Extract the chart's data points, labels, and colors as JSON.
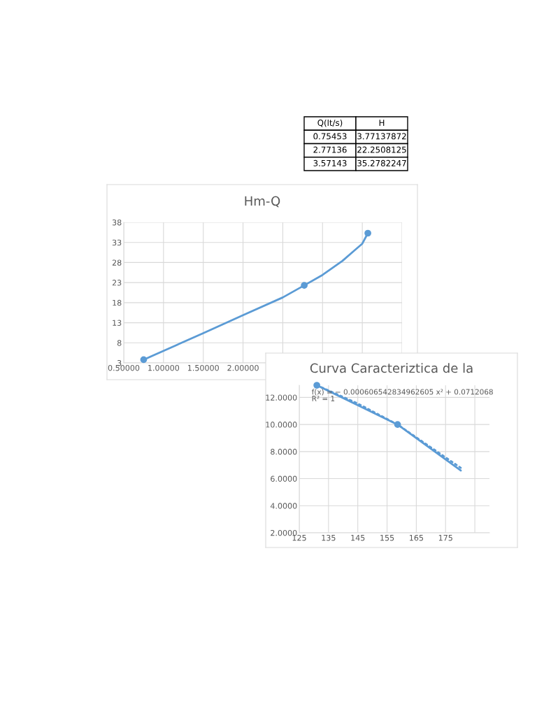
{
  "chart_data": [
    {
      "type": "other",
      "annotations": [
        "Q(lt/s)",
        "H",
        "0.75453",
        "3.77137872",
        "2.77136",
        "22.2508125",
        "3.57143",
        "35.2782247"
      ]
    },
    {
      "type": "line",
      "title": "Hm-Q",
      "series": [
        {
          "type": "line",
          "color": "#5b9bd5",
          "marker": "none",
          "x": [
            0.75,
            1.5,
            2.0,
            2.5,
            2.77,
            3.0,
            3.25,
            3.5,
            3.57
          ],
          "values": [
            3.8,
            10.4,
            14.9,
            19.3,
            22.3,
            24.9,
            28.4,
            32.7,
            35.3
          ]
        },
        {
          "type": "scatter",
          "color": "#5b9bd5",
          "marker": "circle",
          "x": [
            0.75,
            2.77,
            3.57
          ],
          "values": [
            3.8,
            22.3,
            35.3
          ]
        }
      ],
      "xlim": [
        0.5,
        4.0
      ],
      "xticks": [
        {
          "value": 0.5,
          "label": "0.50000"
        },
        {
          "value": 1.0,
          "label": "1.00000"
        },
        {
          "value": 1.5,
          "label": "1.50000"
        },
        {
          "value": 2.0,
          "label": "2.00000"
        },
        {
          "value": 2.5,
          "label": null
        },
        {
          "value": 3.0,
          "label": null
        },
        {
          "value": 3.5,
          "label": null
        },
        {
          "value": 4.0,
          "label": null
        }
      ],
      "ylim": [
        3,
        38
      ],
      "yticks": [
        3,
        8,
        13,
        18,
        23,
        28,
        33,
        38
      ],
      "grid": true
    },
    {
      "type": "line",
      "title": "Curva Caracteriztica de la",
      "series": [
        {
          "type": "line",
          "color": "#5b9bd5",
          "marker": "none",
          "line_style": "solid",
          "x": [
            131,
            158.6,
            180.2
          ],
          "values": [
            12.9,
            10.0,
            6.6
          ]
        },
        {
          "type": "scatter",
          "color": "#5b9bd5",
          "marker": "circle",
          "x": [
            131,
            158.6
          ],
          "values": [
            12.9,
            10.0
          ]
        },
        {
          "type": "line",
          "color": "#5b9bd5",
          "marker": "none",
          "line_style": "dotted",
          "x": [
            131,
            145,
            158.6,
            180.2
          ],
          "values": [
            12.9,
            11.55,
            10.0,
            6.8
          ]
        }
      ],
      "annotations": [
        "f(x) = − 0.000606542834962605 x² + 0.0712068",
        "R² = 1"
      ],
      "xlim": [
        125,
        190
      ],
      "xticks": [
        125,
        135,
        145,
        155,
        165,
        175,
        {
          "value": 185,
          "label": null
        }
      ],
      "ylim": [
        2,
        12.9
      ],
      "yticks": [
        {
          "value": 2,
          "label": "2.0000"
        },
        {
          "value": 4,
          "label": "4.0000"
        },
        {
          "value": 6,
          "label": "6.0000"
        },
        {
          "value": 8,
          "label": "8.0000"
        },
        {
          "value": 10,
          "label": "10.0000"
        },
        {
          "value": 12,
          "label": "12.0000"
        }
      ],
      "grid": true
    }
  ]
}
